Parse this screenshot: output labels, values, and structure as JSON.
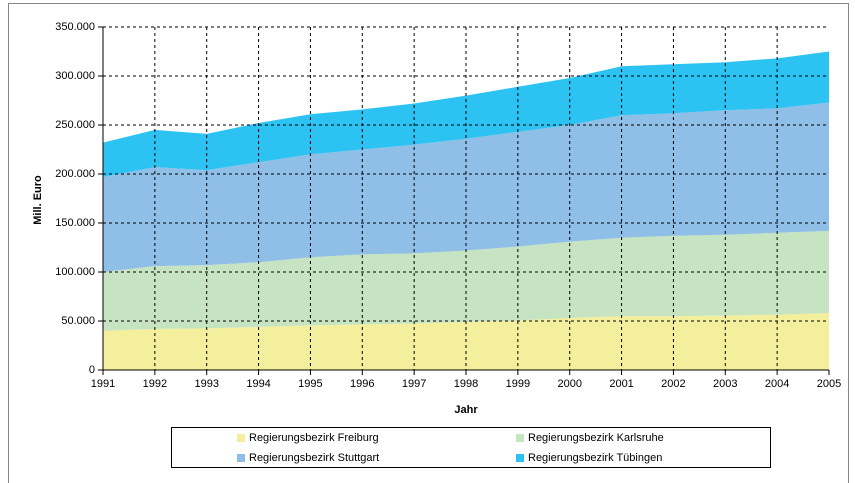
{
  "chart_data": {
    "type": "stacked_area",
    "y_label": "Mill. Euro",
    "x_label": "Jahr",
    "x": [
      1991,
      1992,
      1993,
      1994,
      1995,
      1996,
      1997,
      1998,
      1999,
      2000,
      2001,
      2002,
      2003,
      2004,
      2005
    ],
    "xlim": [
      1991,
      2005
    ],
    "xticks": [
      1991,
      1992,
      1993,
      1994,
      1995,
      1996,
      1997,
      1998,
      1999,
      2000,
      2001,
      2002,
      2003,
      2004,
      2005
    ],
    "ylim": [
      0,
      350000
    ],
    "yticks": [
      0,
      {
        "value": 50000,
        "label": "50.000"
      },
      {
        "value": 100000,
        "label": "100.000"
      },
      {
        "value": 150000,
        "label": "150.000"
      },
      {
        "value": 200000,
        "label": "200.000"
      },
      {
        "value": 250000,
        "label": "250.000"
      },
      {
        "value": 300000,
        "label": "300.000"
      },
      {
        "value": 350000,
        "label": "350.000"
      }
    ],
    "grid": true,
    "legend": "bottom",
    "series": [
      {
        "name": "Regierungsbezirk Freiburg",
        "color": "#f3ef9c",
        "values": [
          40000,
          42000,
          42500,
          44000,
          45500,
          46500,
          47500,
          49000,
          50500,
          53000,
          55000,
          55000,
          55500,
          56500,
          58000
        ]
      },
      {
        "name": "Regierungsbezirk Karlsruhe",
        "color": "#c6e4c2",
        "values": [
          60000,
          64000,
          64500,
          66000,
          69500,
          71500,
          71500,
          73000,
          75500,
          78000,
          80000,
          82000,
          82500,
          83500,
          84000
        ]
      },
      {
        "name": "Regierungsbezirk Stuttgart",
        "color": "#8fbee6",
        "values": [
          97000,
          101000,
          97000,
          102000,
          105000,
          107000,
          111000,
          114000,
          117000,
          119000,
          125000,
          125000,
          127000,
          127000,
          131000
        ]
      },
      {
        "name": "Regierungsbezirk Tübingen",
        "color": "#2cc3f3",
        "values": [
          35000,
          38000,
          37000,
          40000,
          41000,
          41000,
          42000,
          44000,
          46000,
          48000,
          50000,
          50000,
          49000,
          51000,
          52000
        ]
      }
    ]
  }
}
